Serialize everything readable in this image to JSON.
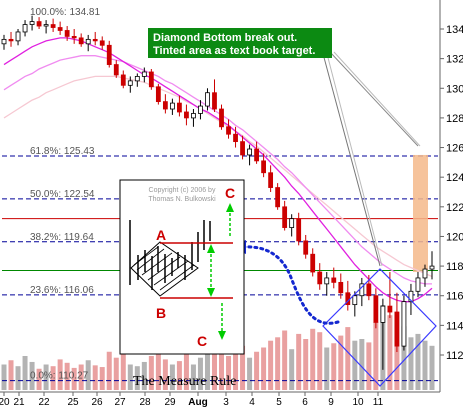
{
  "chart_data": {
    "type": "candlestick",
    "y_axis": {
      "range": [
        110,
        136
      ],
      "tick_labels": [
        "112",
        "114",
        "116",
        "118",
        "120",
        "122",
        "124",
        "126",
        "128",
        "130",
        "132",
        "134"
      ]
    },
    "x_axis": {
      "tick_labels": [
        "20",
        "21",
        "22",
        "25",
        "26",
        "27",
        "28",
        "29",
        "Aug",
        "3",
        "4",
        "5",
        "6",
        "9",
        "10",
        "11"
      ]
    },
    "fibonacci_levels": [
      {
        "label": "100.0%: 134.81",
        "value": 134.81
      },
      {
        "label": "61.8%: 125.43",
        "value": 125.43
      },
      {
        "label": "50.0%: 122.54",
        "value": 122.54
      },
      {
        "label": "38.2%: 119.64",
        "value": 119.64
      },
      {
        "label": "23.6%: 116.06",
        "value": 116.06
      },
      {
        "label": "0.0%: 110.27",
        "value": 110.27
      }
    ],
    "horizontal_lines": [
      {
        "value": 121.2,
        "color": "#cc0000"
      },
      {
        "value": 117.7,
        "color": "#008800"
      }
    ],
    "target_bar": {
      "from": 117.6,
      "to": 125.5,
      "color": "#f4b98a"
    },
    "candles": [
      {
        "o": 133.0,
        "h": 133.6,
        "l": 132.6,
        "c": 133.3
      },
      {
        "o": 133.3,
        "h": 133.8,
        "l": 132.8,
        "c": 133.2
      },
      {
        "o": 133.2,
        "h": 134.0,
        "l": 132.9,
        "c": 133.8
      },
      {
        "o": 133.8,
        "h": 134.6,
        "l": 133.5,
        "c": 134.3
      },
      {
        "o": 134.3,
        "h": 134.9,
        "l": 133.9,
        "c": 134.5
      },
      {
        "o": 134.5,
        "h": 134.8,
        "l": 134.0,
        "c": 134.2
      },
      {
        "o": 134.2,
        "h": 134.6,
        "l": 133.7,
        "c": 134.3
      },
      {
        "o": 134.3,
        "h": 134.7,
        "l": 133.8,
        "c": 134.1
      },
      {
        "o": 134.1,
        "h": 134.5,
        "l": 133.6,
        "c": 133.9
      },
      {
        "o": 133.9,
        "h": 134.2,
        "l": 133.2,
        "c": 133.5
      },
      {
        "o": 133.5,
        "h": 134.0,
        "l": 133.0,
        "c": 133.4
      },
      {
        "o": 133.4,
        "h": 133.7,
        "l": 132.8,
        "c": 133.0
      },
      {
        "o": 133.0,
        "h": 133.6,
        "l": 132.5,
        "c": 133.3
      },
      {
        "o": 133.3,
        "h": 133.8,
        "l": 132.9,
        "c": 133.2
      },
      {
        "o": 133.2,
        "h": 133.5,
        "l": 132.6,
        "c": 132.9
      },
      {
        "o": 132.9,
        "h": 133.2,
        "l": 131.4,
        "c": 131.6
      },
      {
        "o": 131.6,
        "h": 131.9,
        "l": 130.7,
        "c": 130.9
      },
      {
        "o": 130.9,
        "h": 131.2,
        "l": 130.0,
        "c": 130.2
      },
      {
        "o": 130.2,
        "h": 130.8,
        "l": 129.7,
        "c": 130.5
      },
      {
        "o": 130.5,
        "h": 131.0,
        "l": 130.1,
        "c": 130.8
      },
      {
        "o": 130.8,
        "h": 131.4,
        "l": 130.4,
        "c": 131.1
      },
      {
        "o": 131.1,
        "h": 131.3,
        "l": 129.9,
        "c": 130.1
      },
      {
        "o": 130.1,
        "h": 130.3,
        "l": 128.9,
        "c": 129.1
      },
      {
        "o": 129.1,
        "h": 129.6,
        "l": 128.3,
        "c": 128.6
      },
      {
        "o": 128.6,
        "h": 129.3,
        "l": 128.2,
        "c": 129.0
      },
      {
        "o": 129.0,
        "h": 129.5,
        "l": 128.1,
        "c": 128.4
      },
      {
        "o": 128.4,
        "h": 128.9,
        "l": 127.5,
        "c": 128.0
      },
      {
        "o": 128.0,
        "h": 128.6,
        "l": 127.4,
        "c": 128.3
      },
      {
        "o": 128.3,
        "h": 129.2,
        "l": 127.9,
        "c": 128.8
      },
      {
        "o": 128.8,
        "h": 130.0,
        "l": 128.5,
        "c": 129.7
      },
      {
        "o": 129.7,
        "h": 130.6,
        "l": 128.4,
        "c": 128.6
      },
      {
        "o": 128.6,
        "h": 128.9,
        "l": 127.2,
        "c": 127.4
      },
      {
        "o": 127.4,
        "h": 127.9,
        "l": 126.6,
        "c": 126.9
      },
      {
        "o": 126.9,
        "h": 127.4,
        "l": 126.0,
        "c": 126.4
      },
      {
        "o": 126.4,
        "h": 126.8,
        "l": 125.2,
        "c": 125.5
      },
      {
        "o": 125.5,
        "h": 126.2,
        "l": 124.8,
        "c": 125.9
      },
      {
        "o": 125.9,
        "h": 126.4,
        "l": 124.9,
        "c": 125.1
      },
      {
        "o": 125.1,
        "h": 125.6,
        "l": 124.0,
        "c": 124.3
      },
      {
        "o": 124.3,
        "h": 124.8,
        "l": 123.0,
        "c": 123.3
      },
      {
        "o": 123.3,
        "h": 123.6,
        "l": 121.8,
        "c": 122.0
      },
      {
        "o": 122.0,
        "h": 122.4,
        "l": 120.4,
        "c": 120.6
      },
      {
        "o": 120.6,
        "h": 121.5,
        "l": 120.0,
        "c": 121.2
      },
      {
        "o": 121.2,
        "h": 121.6,
        "l": 119.4,
        "c": 119.7
      },
      {
        "o": 119.7,
        "h": 120.1,
        "l": 118.5,
        "c": 118.8
      },
      {
        "o": 118.8,
        "h": 119.2,
        "l": 117.3,
        "c": 117.6
      },
      {
        "o": 117.6,
        "h": 118.2,
        "l": 116.4,
        "c": 116.8
      },
      {
        "o": 116.8,
        "h": 117.6,
        "l": 116.0,
        "c": 117.2
      },
      {
        "o": 117.2,
        "h": 117.9,
        "l": 116.5,
        "c": 116.9
      },
      {
        "o": 116.9,
        "h": 117.5,
        "l": 115.8,
        "c": 116.2
      },
      {
        "o": 116.2,
        "h": 117.0,
        "l": 115.0,
        "c": 115.4
      },
      {
        "o": 115.4,
        "h": 116.3,
        "l": 114.6,
        "c": 116.0
      },
      {
        "o": 116.0,
        "h": 117.2,
        "l": 115.3,
        "c": 116.8
      },
      {
        "o": 116.8,
        "h": 117.4,
        "l": 115.7,
        "c": 116.0
      },
      {
        "o": 116.0,
        "h": 116.5,
        "l": 113.8,
        "c": 114.2
      },
      {
        "o": 114.2,
        "h": 115.8,
        "l": 111.0,
        "c": 115.3
      },
      {
        "o": 115.3,
        "h": 117.6,
        "l": 114.5,
        "c": 114.9
      },
      {
        "o": 114.9,
        "h": 116.2,
        "l": 112.2,
        "c": 112.6
      },
      {
        "o": 112.6,
        "h": 116.0,
        "l": 112.3,
        "c": 115.6
      },
      {
        "o": 115.6,
        "h": 116.8,
        "l": 114.7,
        "c": 116.3
      },
      {
        "o": 116.3,
        "h": 117.6,
        "l": 115.9,
        "c": 117.2
      },
      {
        "o": 117.2,
        "h": 118.1,
        "l": 116.6,
        "c": 117.8
      },
      {
        "o": 117.8,
        "h": 119.0,
        "l": 117.1,
        "c": 118.0
      }
    ],
    "moving_averages": [
      {
        "color": "#e020e0",
        "values": [
          131.6,
          131.9,
          132.2,
          132.5,
          132.8,
          133.0,
          133.2,
          133.3,
          133.4,
          133.4,
          133.3,
          133.2,
          133.0,
          132.8,
          132.6,
          132.4,
          132.1,
          131.8,
          131.5,
          131.2,
          130.9,
          130.7,
          130.4,
          130.1,
          129.8,
          129.5,
          129.2,
          128.9,
          128.6,
          128.4,
          128.1,
          127.8,
          127.5,
          127.1,
          126.7,
          126.3,
          125.9,
          125.5,
          125.0,
          124.5,
          124.0,
          123.4,
          122.9,
          122.3,
          121.7,
          121.1,
          120.5,
          119.9,
          119.3,
          118.7,
          118.1,
          117.6,
          117.1,
          116.6,
          116.2,
          115.9,
          115.7,
          115.6,
          115.6,
          115.8,
          116.1,
          116.5
        ]
      },
      {
        "color": "#f08cf0",
        "values": [
          129.9,
          130.2,
          130.5,
          130.8,
          131.0,
          131.3,
          131.5,
          131.7,
          131.9,
          132.0,
          132.1,
          132.2,
          132.2,
          132.2,
          132.1,
          132.0,
          131.9,
          131.8,
          131.6,
          131.4,
          131.2,
          131.0,
          130.8,
          130.5,
          130.3,
          130.0,
          129.7,
          129.4,
          129.1,
          128.8,
          128.5,
          128.2,
          127.9,
          127.5,
          127.2,
          126.8,
          126.4,
          126.0,
          125.6,
          125.2,
          124.7,
          124.3,
          123.8,
          123.3,
          122.8,
          122.3,
          121.8,
          121.3,
          120.8,
          120.3,
          119.8,
          119.3,
          118.9,
          118.5,
          118.1,
          117.8,
          117.5,
          117.2,
          117.0,
          116.9,
          116.8,
          116.8
        ]
      },
      {
        "color": "#f6c8d2",
        "values": [
          128.0,
          128.3,
          128.6,
          128.9,
          129.2,
          129.4,
          129.7,
          129.9,
          130.1,
          130.3,
          130.5,
          130.6,
          130.7,
          130.8,
          130.8,
          130.8,
          130.8,
          130.7,
          130.6,
          130.5,
          130.4,
          130.2,
          130.0,
          129.8,
          129.6,
          129.4,
          129.1,
          128.9,
          128.6,
          128.3,
          128.0,
          127.7,
          127.4,
          127.1,
          126.8,
          126.4,
          126.1,
          125.7,
          125.3,
          124.9,
          124.5,
          124.1,
          123.7,
          123.3,
          122.9,
          122.5,
          122.1,
          121.7,
          121.3,
          120.9,
          120.5,
          120.1,
          119.7,
          119.3,
          119.0,
          118.7,
          118.4,
          118.1,
          117.9,
          117.7,
          117.5,
          117.3
        ]
      }
    ],
    "volumes": [
      0.3,
      0.35,
      0.28,
      0.4,
      0.33,
      0.25,
      0.3,
      0.28,
      0.36,
      0.32,
      0.26,
      0.3,
      0.35,
      0.29,
      0.27,
      0.45,
      0.38,
      0.42,
      0.3,
      0.28,
      0.33,
      0.4,
      0.48,
      0.36,
      0.3,
      0.34,
      0.42,
      0.3,
      0.38,
      0.5,
      0.55,
      0.47,
      0.4,
      0.44,
      0.52,
      0.38,
      0.45,
      0.5,
      0.58,
      0.62,
      0.7,
      0.48,
      0.66,
      0.6,
      0.72,
      0.68,
      0.5,
      0.55,
      0.64,
      0.74,
      0.58,
      0.6,
      0.56,
      0.8,
      1.0,
      0.88,
      0.92,
      0.75,
      0.62,
      0.66,
      0.58,
      0.52
    ],
    "annotations": {
      "callout": [
        "Diamond Bottom break out.",
        "Tinted area as text book target."
      ],
      "inset_copyright": [
        "Copyright (c) 2006 by",
        "Thomas N. Bulkowski"
      ],
      "inset_labels": {
        "a": "A",
        "b": "B",
        "c_top": "C",
        "c_bottom": "C"
      },
      "inset_title": "The Measure Rule"
    },
    "colors": {
      "candle_up": "#000000",
      "candle_down": "#cc0000",
      "volume_up": "#b3b3b3",
      "volume_down": "#e9a0a0",
      "fib_line": "#000099",
      "callout_bg": "#0c8a12",
      "diamond": "#3a3aff",
      "arrow": "#1428d0",
      "green_arrow": "#00cc00"
    }
  }
}
